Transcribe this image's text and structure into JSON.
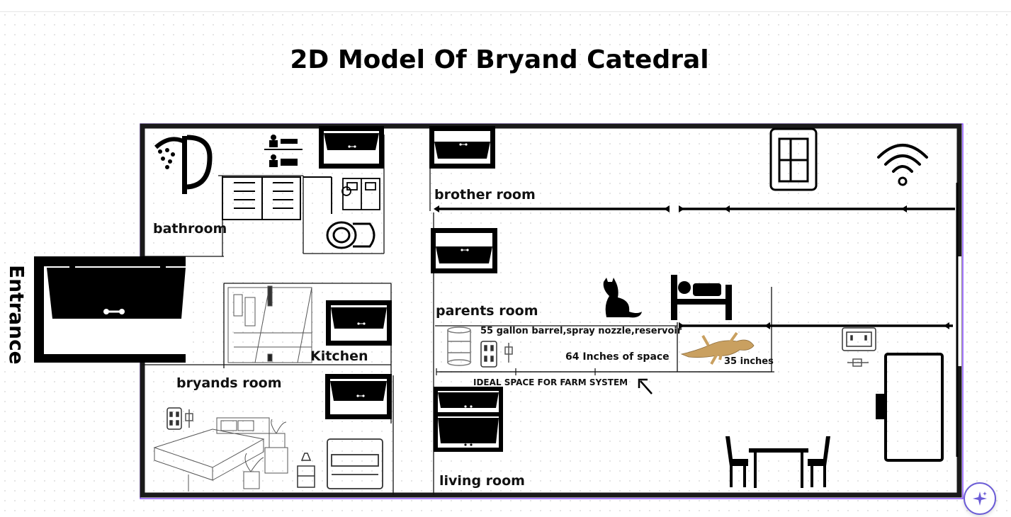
{
  "title": "2D Model Of Bryand Catedral",
  "entrance_label": "Entrance",
  "rooms": {
    "bathroom": "bathroom",
    "kitchen": "Kitchen",
    "bryands_room": "bryands room",
    "brother_room": "brother room",
    "parents_room": "parents room",
    "living_room": "living room"
  },
  "annotations": {
    "barrel": "55 gallon barrel,spray nozzle,reservoir",
    "space": "64 Inches of space",
    "inches": "35 inches",
    "farm": "IDEAL SPACE FOR FARM SYSTEM"
  },
  "colors": {
    "selection_outline": "#8a4fff",
    "wall": "#1a1a1a",
    "gecko": "#c9a060",
    "ai_accent": "#6b5cd6"
  },
  "icons": [
    "shower-icon",
    "restroom-icon",
    "window-icon",
    "dresser-icon",
    "vanity-icon",
    "toilet-icon",
    "door-icon",
    "cat-icon",
    "bed-icon",
    "gecko-icon",
    "barrel-icon",
    "outlet-icon",
    "plug-icon",
    "wifi-icon",
    "armchair-icon",
    "tv-icon",
    "dining-table-icon",
    "arrow-icon",
    "sparkle-icon"
  ]
}
